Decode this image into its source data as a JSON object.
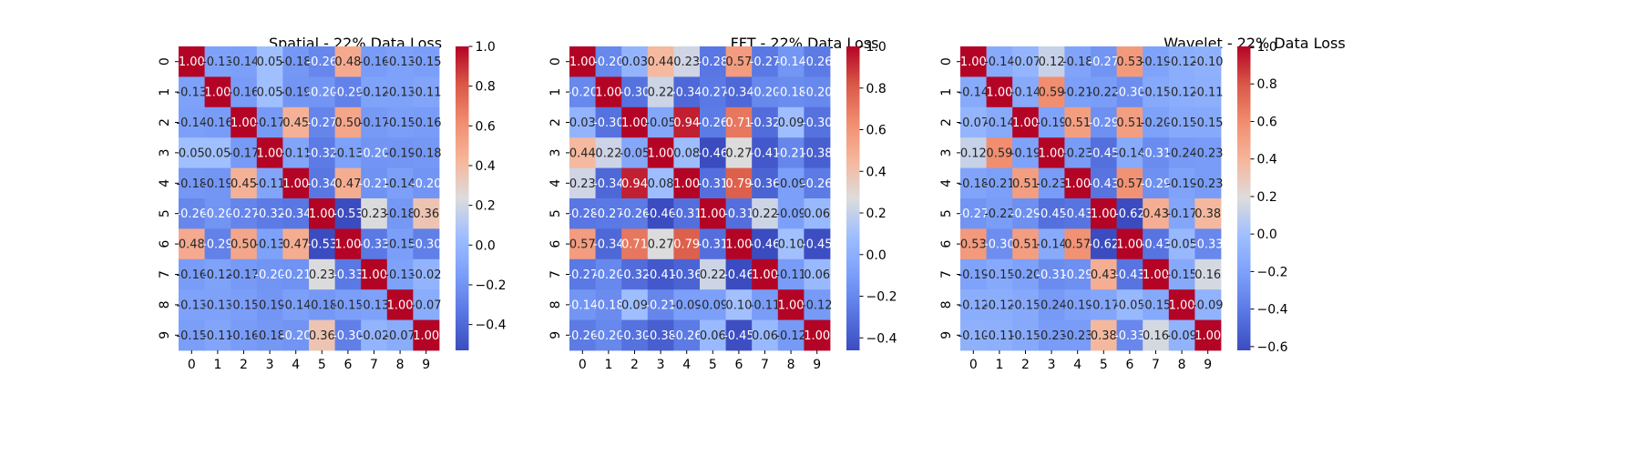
{
  "chart_data": [
    {
      "type": "heatmap",
      "title": "Spatial - 22% Data Loss",
      "xlabel": "",
      "ylabel": "",
      "x_categories": [
        "0",
        "1",
        "2",
        "3",
        "4",
        "5",
        "6",
        "7",
        "8",
        "9"
      ],
      "y_categories": [
        "0",
        "1",
        "2",
        "3",
        "4",
        "5",
        "6",
        "7",
        "8",
        "9"
      ],
      "matrix": [
        [
          1.0,
          -0.13,
          -0.14,
          0.05,
          -0.18,
          -0.26,
          0.48,
          -0.16,
          -0.13,
          -0.15
        ],
        [
          -0.13,
          1.0,
          -0.16,
          0.05,
          -0.19,
          -0.2,
          -0.29,
          -0.12,
          -0.13,
          -0.11
        ],
        [
          -0.14,
          -0.16,
          1.0,
          -0.17,
          0.45,
          -0.27,
          0.5,
          -0.17,
          -0.15,
          -0.16
        ],
        [
          0.05,
          0.05,
          -0.17,
          1.0,
          -0.11,
          -0.32,
          -0.13,
          -0.2,
          -0.19,
          -0.18
        ],
        [
          -0.18,
          -0.19,
          0.45,
          -0.11,
          1.0,
          -0.34,
          0.47,
          -0.21,
          -0.14,
          -0.2
        ],
        [
          -0.26,
          -0.2,
          -0.27,
          -0.32,
          -0.34,
          1.0,
          -0.53,
          0.23,
          -0.18,
          0.36
        ],
        [
          0.48,
          -0.29,
          0.5,
          -0.13,
          0.47,
          -0.53,
          1.0,
          -0.33,
          -0.15,
          -0.3
        ],
        [
          -0.16,
          -0.12,
          -0.17,
          -0.2,
          -0.21,
          0.23,
          -0.33,
          1.0,
          -0.13,
          -0.02
        ],
        [
          -0.13,
          -0.13,
          -0.15,
          -0.19,
          -0.14,
          -0.18,
          -0.15,
          -0.13,
          1.0,
          -0.07
        ],
        [
          -0.15,
          -0.11,
          -0.16,
          -0.18,
          -0.2,
          0.36,
          -0.3,
          -0.02,
          -0.07,
          1.0
        ]
      ],
      "colormap": "coolwarm",
      "vmin": -0.53,
      "vmax": 1.0,
      "colorbar_ticks": [
        "1.0",
        "0.8",
        "0.6",
        "0.4",
        "0.2",
        "0.0",
        "−0.2",
        "−0.4"
      ]
    },
    {
      "type": "heatmap",
      "title": "FFT - 22% Data Loss",
      "xlabel": "",
      "ylabel": "",
      "x_categories": [
        "0",
        "1",
        "2",
        "3",
        "4",
        "5",
        "6",
        "7",
        "8",
        "9"
      ],
      "y_categories": [
        "0",
        "1",
        "2",
        "3",
        "4",
        "5",
        "6",
        "7",
        "8",
        "9"
      ],
      "matrix": [
        [
          1.0,
          -0.2,
          0.03,
          0.44,
          0.23,
          -0.28,
          0.57,
          -0.27,
          -0.14,
          -0.26
        ],
        [
          -0.2,
          1.0,
          -0.3,
          0.22,
          -0.34,
          -0.27,
          -0.34,
          -0.2,
          -0.18,
          -0.2
        ],
        [
          0.03,
          -0.3,
          1.0,
          -0.05,
          0.94,
          -0.26,
          0.71,
          -0.32,
          0.09,
          -0.3
        ],
        [
          0.44,
          0.22,
          -0.05,
          1.0,
          0.08,
          -0.46,
          0.27,
          -0.41,
          -0.21,
          -0.38
        ],
        [
          0.23,
          -0.34,
          0.94,
          0.08,
          1.0,
          -0.31,
          0.79,
          -0.36,
          -0.09,
          -0.26
        ],
        [
          -0.28,
          -0.27,
          -0.26,
          -0.46,
          -0.31,
          1.0,
          -0.31,
          0.22,
          -0.09,
          0.06
        ],
        [
          0.57,
          -0.34,
          0.71,
          0.27,
          0.79,
          -0.31,
          1.0,
          -0.46,
          0.1,
          -0.45
        ],
        [
          -0.27,
          -0.2,
          -0.32,
          -0.41,
          -0.36,
          0.22,
          -0.46,
          1.0,
          -0.11,
          0.06
        ],
        [
          -0.14,
          -0.18,
          0.09,
          -0.21,
          -0.09,
          -0.09,
          0.1,
          -0.11,
          1.0,
          -0.12
        ],
        [
          -0.26,
          -0.2,
          -0.3,
          -0.38,
          -0.26,
          0.06,
          -0.45,
          0.06,
          -0.12,
          1.0
        ]
      ],
      "colormap": "coolwarm",
      "vmin": -0.46,
      "vmax": 1.0,
      "colorbar_ticks": [
        "1.0",
        "0.8",
        "0.6",
        "0.4",
        "0.2",
        "0.0",
        "−0.2",
        "−0.4"
      ]
    },
    {
      "type": "heatmap",
      "title": "Wavelet - 22% Data Loss",
      "xlabel": "",
      "ylabel": "",
      "x_categories": [
        "0",
        "1",
        "2",
        "3",
        "4",
        "5",
        "6",
        "7",
        "8",
        "9"
      ],
      "y_categories": [
        "0",
        "1",
        "2",
        "3",
        "4",
        "5",
        "6",
        "7",
        "8",
        "9"
      ],
      "matrix": [
        [
          1.0,
          -0.14,
          -0.07,
          0.12,
          -0.18,
          -0.27,
          0.53,
          -0.19,
          -0.12,
          -0.1
        ],
        [
          -0.14,
          1.0,
          -0.14,
          0.59,
          -0.21,
          -0.22,
          -0.3,
          -0.15,
          -0.12,
          -0.11
        ],
        [
          -0.07,
          -0.14,
          1.0,
          -0.19,
          0.51,
          -0.29,
          0.51,
          -0.2,
          -0.15,
          -0.15
        ],
        [
          0.12,
          0.59,
          -0.19,
          1.0,
          -0.23,
          -0.45,
          -0.14,
          -0.31,
          -0.24,
          -0.23
        ],
        [
          -0.18,
          -0.21,
          0.51,
          -0.23,
          1.0,
          -0.43,
          0.57,
          -0.29,
          -0.19,
          -0.23
        ],
        [
          -0.27,
          -0.22,
          -0.29,
          -0.45,
          -0.43,
          1.0,
          -0.62,
          0.43,
          -0.17,
          0.38
        ],
        [
          0.53,
          -0.3,
          0.51,
          -0.14,
          0.57,
          -0.62,
          1.0,
          -0.43,
          -0.05,
          -0.33
        ],
        [
          -0.19,
          -0.15,
          -0.2,
          -0.31,
          -0.29,
          0.43,
          -0.43,
          1.0,
          -0.15,
          0.16
        ],
        [
          -0.12,
          -0.12,
          -0.15,
          -0.24,
          -0.19,
          -0.17,
          -0.05,
          -0.15,
          1.0,
          -0.09
        ],
        [
          -0.1,
          -0.11,
          -0.15,
          -0.23,
          -0.23,
          0.38,
          -0.33,
          0.16,
          -0.09,
          1.0
        ]
      ],
      "colormap": "coolwarm",
      "vmin": -0.62,
      "vmax": 1.0,
      "colorbar_ticks": [
        "1.0",
        "0.8",
        "0.6",
        "0.4",
        "0.2",
        "0.0",
        "−0.2",
        "−0.4",
        "−0.6"
      ]
    }
  ]
}
